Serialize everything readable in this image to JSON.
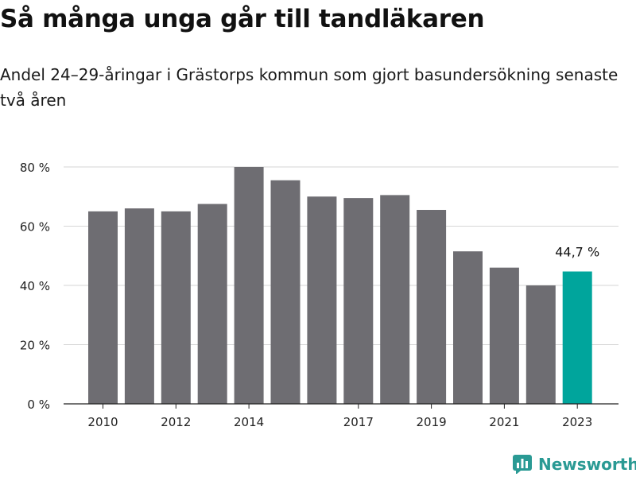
{
  "header": {
    "title": "Så många unga går till tandläkaren",
    "subtitle": "Andel 24–29-åringar i Grästorps kommun som gjort basundersökning senaste två åren"
  },
  "brand": {
    "name": "Newsworthy",
    "icon": "newsworthy-chart-icon",
    "color": "#2a9a94"
  },
  "chart_data": {
    "type": "bar",
    "categories": [
      "2010",
      "2011",
      "2012",
      "2013",
      "2014",
      "2015",
      "2016",
      "2017",
      "2018",
      "2019",
      "2020",
      "2021",
      "2022",
      "2023"
    ],
    "values": [
      65,
      66,
      65,
      67.5,
      80,
      75.5,
      70,
      69.5,
      70.5,
      65.5,
      51.5,
      46,
      40,
      44.7
    ],
    "x_tick_labels": [
      "2010",
      "",
      "2012",
      "",
      "2014",
      "",
      "",
      "2017",
      "",
      "2019",
      "",
      "2021",
      "",
      "2023"
    ],
    "y_ticks": [
      0,
      20,
      40,
      60,
      80
    ],
    "y_tick_labels": [
      "0 %",
      "20 %",
      "40 %",
      "60 %",
      "80 %"
    ],
    "ylim": [
      0,
      80
    ],
    "grid": true,
    "highlight_index": 13,
    "highlight_label": "44,7 %",
    "colors": {
      "bar": "#6e6d72",
      "highlight": "#00a59c",
      "grid": "#d6d6d6",
      "axis": "#222222"
    }
  }
}
